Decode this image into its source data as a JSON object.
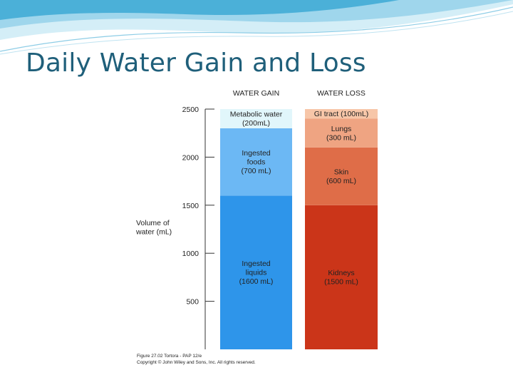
{
  "slide": {
    "title": "Daily Water Gain and Loss"
  },
  "colors": {
    "gain_metabolic": "#e1f6fb",
    "gain_foods": "#6cb8f4",
    "gain_liquids": "#2e95ea",
    "loss_gi": "#f7c6a8",
    "loss_lungs": "#efa482",
    "loss_skin": "#df6d48",
    "loss_kidneys": "#cb3519",
    "title": "#1f5f7a"
  },
  "chart_data": {
    "type": "bar",
    "stacked": true,
    "ylabel": [
      "Volume of",
      "water (mL)"
    ],
    "ylim": [
      0,
      2500
    ],
    "yticks": [
      {
        "value": 2500,
        "label": "2500"
      },
      {
        "value": 2000,
        "label": "2000"
      },
      {
        "value": 1500,
        "label": "1500"
      },
      {
        "value": 1000,
        "label": "1000"
      },
      {
        "value": 500,
        "label": "500"
      }
    ],
    "columns": [
      {
        "id": "gain",
        "header": "WATER GAIN",
        "segments": [
          {
            "id": "liquids",
            "value": 1600,
            "label_lines": [
              "Ingested",
              "liquids",
              "(1600 mL)"
            ],
            "color_key": "gain_liquids"
          },
          {
            "id": "foods",
            "value": 700,
            "label_lines": [
              "Ingested",
              "foods",
              "(700 mL)"
            ],
            "color_key": "gain_foods"
          },
          {
            "id": "metabolic",
            "value": 200,
            "label_lines": [
              "Metabolic water",
              "(200mL)"
            ],
            "color_key": "gain_metabolic"
          }
        ]
      },
      {
        "id": "loss",
        "header": "WATER LOSS",
        "segments": [
          {
            "id": "kidneys",
            "value": 1500,
            "label_lines": [
              "Kidneys",
              "(1500 mL)"
            ],
            "color_key": "loss_kidneys"
          },
          {
            "id": "skin",
            "value": 600,
            "label_lines": [
              "Skin",
              "(600 mL)"
            ],
            "color_key": "loss_skin"
          },
          {
            "id": "lungs",
            "value": 300,
            "label_lines": [
              "Lungs",
              "(300 mL)"
            ],
            "color_key": "loss_lungs"
          },
          {
            "id": "gi",
            "value": 100,
            "label_lines": [
              "GI tract (100mL)"
            ],
            "color_key": "loss_gi"
          }
        ]
      }
    ],
    "credit": [
      "Figure 27.02 Tortora - PAP 12/e",
      "Copyright © John Wiley and Sons, Inc. All rights reserved."
    ]
  }
}
